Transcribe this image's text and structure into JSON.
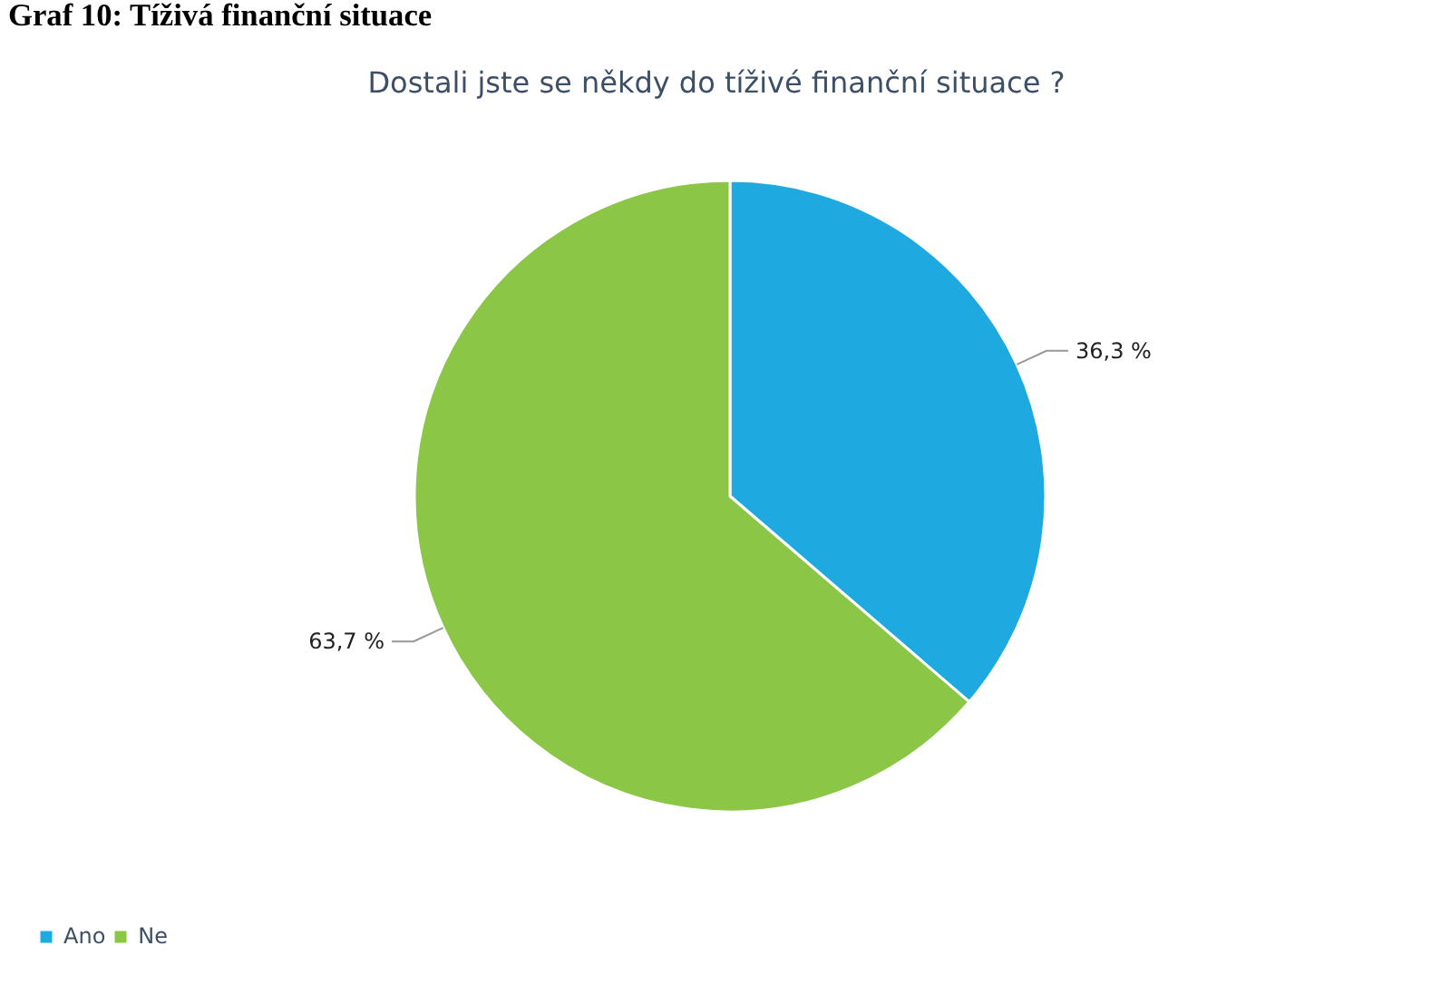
{
  "chart_data": {
    "type": "pie",
    "title": "Dostali jste se někdy do tíživé finanční situace ?",
    "annotations": [
      "Graf 10: Tíživá finanční situace"
    ],
    "categories": [
      "Ano",
      "Ne"
    ],
    "values": [
      36.3,
      63.7
    ],
    "value_labels": [
      "36,3 %",
      "63,7 %"
    ],
    "colors": [
      "#1fa9e1",
      "#8bc646"
    ],
    "legend": "bottom left"
  }
}
